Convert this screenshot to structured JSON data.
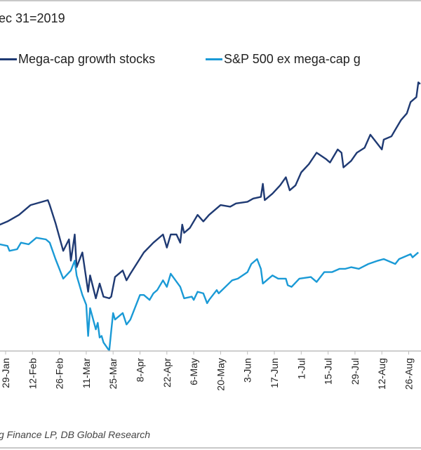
{
  "chart_data": {
    "type": "line",
    "title": "ec 31=2019",
    "xlabel": "",
    "ylabel": "",
    "grid": false,
    "legend_placement": "top",
    "x_tick_labels": [
      "29-Jan",
      "12-Feb",
      "26-Feb",
      "11-Mar",
      "25-Mar",
      "8-Apr",
      "22-Apr",
      "6-May",
      "20-May",
      "3-Jun",
      "17-Jun",
      "1-Jul",
      "15-Jul",
      "29-Jul",
      "12-Aug",
      "26-Aug"
    ],
    "x_tick_dates": [
      "2020-01-29",
      "2020-02-12",
      "2020-02-26",
      "2020-03-11",
      "2020-03-25",
      "2020-04-08",
      "2020-04-22",
      "2020-05-06",
      "2020-05-20",
      "2020-06-03",
      "2020-06-17",
      "2020-07-01",
      "2020-07-15",
      "2020-07-29",
      "2020-08-12",
      "2020-08-26"
    ],
    "series": [
      {
        "name": "Mega-cap growth stocks",
        "color": "#1f3a73",
        "points": [
          [
            "2020-01-26",
            106
          ],
          [
            "2020-01-30",
            107
          ],
          [
            "2020-02-05",
            109
          ],
          [
            "2020-02-11",
            112
          ],
          [
            "2020-02-20",
            113.5
          ],
          [
            "2020-02-21",
            112
          ],
          [
            "2020-02-24",
            106.5
          ],
          [
            "2020-02-28",
            98
          ],
          [
            "2020-03-02",
            101.5
          ],
          [
            "2020-03-03",
            95
          ],
          [
            "2020-03-05",
            103
          ],
          [
            "2020-03-06",
            93
          ],
          [
            "2020-03-09",
            97.5
          ],
          [
            "2020-03-12",
            85.5
          ],
          [
            "2020-03-13",
            90.5
          ],
          [
            "2020-03-16",
            83.5
          ],
          [
            "2020-03-18",
            88
          ],
          [
            "2020-03-20",
            84
          ],
          [
            "2020-03-23",
            83.5
          ],
          [
            "2020-03-24",
            84
          ],
          [
            "2020-03-26",
            90
          ],
          [
            "2020-03-30",
            92
          ],
          [
            "2020-04-01",
            89
          ],
          [
            "2020-04-03",
            91
          ],
          [
            "2020-04-10",
            97.5
          ],
          [
            "2020-04-15",
            100.5
          ],
          [
            "2020-04-20",
            103
          ],
          [
            "2020-04-22",
            99
          ],
          [
            "2020-04-24",
            103
          ],
          [
            "2020-04-27",
            103
          ],
          [
            "2020-04-29",
            100.5
          ],
          [
            "2020-04-30",
            106
          ],
          [
            "2020-05-01",
            103.5
          ],
          [
            "2020-05-04",
            105
          ],
          [
            "2020-05-08",
            109
          ],
          [
            "2020-05-11",
            107
          ],
          [
            "2020-05-14",
            109
          ],
          [
            "2020-05-20",
            112
          ],
          [
            "2020-05-25",
            111.5
          ],
          [
            "2020-05-28",
            112.5
          ],
          [
            "2020-06-03",
            113
          ],
          [
            "2020-06-06",
            114
          ],
          [
            "2020-06-10",
            114.5
          ],
          [
            "2020-06-11",
            118.5
          ],
          [
            "2020-06-12",
            113.5
          ],
          [
            "2020-06-16",
            115.5
          ],
          [
            "2020-06-20",
            118
          ],
          [
            "2020-06-23",
            120.5
          ],
          [
            "2020-06-25",
            116.5
          ],
          [
            "2020-06-28",
            118
          ],
          [
            "2020-07-01",
            122
          ],
          [
            "2020-07-05",
            124.5
          ],
          [
            "2020-07-09",
            128
          ],
          [
            "2020-07-14",
            126
          ],
          [
            "2020-07-16",
            125
          ],
          [
            "2020-07-20",
            129
          ],
          [
            "2020-07-22",
            128
          ],
          [
            "2020-07-23",
            123.5
          ],
          [
            "2020-07-27",
            125.5
          ],
          [
            "2020-07-30",
            128
          ],
          [
            "2020-08-03",
            129.5
          ],
          [
            "2020-08-06",
            133.5
          ],
          [
            "2020-08-08",
            132
          ],
          [
            "2020-08-12",
            129
          ],
          [
            "2020-08-13",
            132
          ],
          [
            "2020-08-17",
            133
          ],
          [
            "2020-08-19",
            135
          ],
          [
            "2020-08-22",
            138
          ],
          [
            "2020-08-25",
            140
          ],
          [
            "2020-08-27",
            143.5
          ],
          [
            "2020-08-30",
            145
          ],
          [
            "2020-08-31",
            149.5
          ],
          [
            "2020-09-01",
            149
          ]
        ]
      },
      {
        "name": "S&P 500 ex mega-cap g",
        "color": "#1a9ad6",
        "points": [
          [
            "2020-01-26",
            100
          ],
          [
            "2020-01-30",
            99.5
          ],
          [
            "2020-01-31",
            98
          ],
          [
            "2020-02-04",
            98.5
          ],
          [
            "2020-02-06",
            100.5
          ],
          [
            "2020-02-10",
            100
          ],
          [
            "2020-02-14",
            102
          ],
          [
            "2020-02-19",
            101.5
          ],
          [
            "2020-02-21",
            100.5
          ],
          [
            "2020-02-24",
            95.5
          ],
          [
            "2020-02-28",
            89.5
          ],
          [
            "2020-03-03",
            92
          ],
          [
            "2020-03-05",
            95
          ],
          [
            "2020-03-06",
            90.5
          ],
          [
            "2020-03-09",
            84.5
          ],
          [
            "2020-03-11",
            81.5
          ],
          [
            "2020-03-12",
            72
          ],
          [
            "2020-03-13",
            80.5
          ],
          [
            "2020-03-16",
            74
          ],
          [
            "2020-03-17",
            76
          ],
          [
            "2020-03-18",
            71.5
          ],
          [
            "2020-03-19",
            72
          ],
          [
            "2020-03-20",
            70
          ],
          [
            "2020-03-23",
            67.5
          ],
          [
            "2020-03-24",
            73.5
          ],
          [
            "2020-03-25",
            79
          ],
          [
            "2020-03-26",
            77
          ],
          [
            "2020-03-30",
            79
          ],
          [
            "2020-04-01",
            75.5
          ],
          [
            "2020-04-03",
            77
          ],
          [
            "2020-04-08",
            84.5
          ],
          [
            "2020-04-10",
            84.5
          ],
          [
            "2020-04-13",
            83
          ],
          [
            "2020-04-15",
            85
          ],
          [
            "2020-04-17",
            86
          ],
          [
            "2020-04-20",
            89
          ],
          [
            "2020-04-22",
            87
          ],
          [
            "2020-04-24",
            91
          ],
          [
            "2020-04-29",
            87
          ],
          [
            "2020-05-01",
            83.5
          ],
          [
            "2020-05-05",
            84
          ],
          [
            "2020-05-06",
            83
          ],
          [
            "2020-05-08",
            85.5
          ],
          [
            "2020-05-11",
            85
          ],
          [
            "2020-05-13",
            82
          ],
          [
            "2020-05-14",
            83
          ],
          [
            "2020-05-18",
            86
          ],
          [
            "2020-05-19",
            85
          ],
          [
            "2020-05-26",
            89
          ],
          [
            "2020-05-29",
            89.5
          ],
          [
            "2020-06-03",
            91.5
          ],
          [
            "2020-06-05",
            94
          ],
          [
            "2020-06-08",
            95.5
          ],
          [
            "2020-06-10",
            92.5
          ],
          [
            "2020-06-11",
            88
          ],
          [
            "2020-06-16",
            90.5
          ],
          [
            "2020-06-19",
            89.5
          ],
          [
            "2020-06-23",
            89.5
          ],
          [
            "2020-06-24",
            87.5
          ],
          [
            "2020-06-26",
            87
          ],
          [
            "2020-06-30",
            89.5
          ],
          [
            "2020-07-06",
            90
          ],
          [
            "2020-07-09",
            88.5
          ],
          [
            "2020-07-13",
            91.5
          ],
          [
            "2020-07-17",
            91.5
          ],
          [
            "2020-07-21",
            92.5
          ],
          [
            "2020-07-24",
            92.5
          ],
          [
            "2020-07-27",
            93
          ],
          [
            "2020-07-31",
            92.5
          ],
          [
            "2020-08-05",
            94
          ],
          [
            "2020-08-10",
            95
          ],
          [
            "2020-08-13",
            95.5
          ],
          [
            "2020-08-19",
            94
          ],
          [
            "2020-08-21",
            95.5
          ],
          [
            "2020-08-27",
            97
          ],
          [
            "2020-08-28",
            96
          ],
          [
            "2020-08-31",
            97.5
          ]
        ]
      }
    ]
  },
  "source": "g Finance LP, DB Global Research"
}
